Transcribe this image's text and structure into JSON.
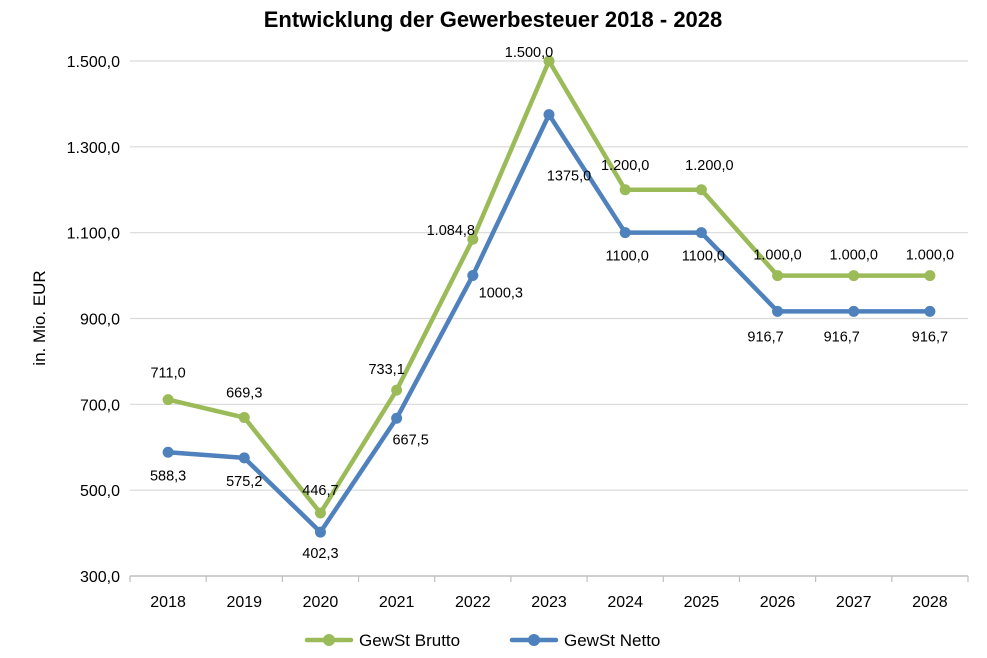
{
  "chart_data": {
    "type": "line",
    "title": "Entwicklung der Gewerbesteuer 2018 - 2028",
    "xlabel": "",
    "ylabel": "in. Mio. EUR",
    "ylim": [
      300,
      1500
    ],
    "y_ticks": [
      300,
      500,
      700,
      900,
      1100,
      1300,
      1500
    ],
    "y_tick_labels": [
      "300,0",
      "500,0",
      "700,0",
      "900,0",
      "1.100,0",
      "1.300,0",
      "1.500,0"
    ],
    "grid": true,
    "legend_position": "bottom",
    "categories": [
      "2018",
      "2019",
      "2020",
      "2021",
      "2022",
      "2023",
      "2024",
      "2025",
      "2026",
      "2027",
      "2028"
    ],
    "series": [
      {
        "name": "GewSt Brutto",
        "color": "#9bbb59",
        "values": [
          711.0,
          669.3,
          446.7,
          733.1,
          1084.8,
          1500.0,
          1200.0,
          1200.0,
          1000.0,
          1000.0,
          1000.0
        ],
        "labels": [
          "711,0",
          "669,3",
          "446,7",
          "733,1",
          "1.084,8",
          "1.500,0",
          "1.200,0",
          "1.200,0",
          "1.000,0",
          "1.000,0",
          "1.000,0"
        ]
      },
      {
        "name": "GewSt Netto",
        "color": "#4f81bd",
        "values": [
          588.3,
          575.2,
          402.3,
          667.5,
          1000.3,
          1375.0,
          1100.0,
          1100.0,
          916.7,
          916.7,
          916.7
        ],
        "labels": [
          "588,3",
          "575,2",
          "402,3",
          "667,5",
          "1000,3",
          "1375,0",
          "1100,0",
          "1100,0",
          "916,7",
          "916,7",
          "916,7"
        ]
      }
    ]
  }
}
